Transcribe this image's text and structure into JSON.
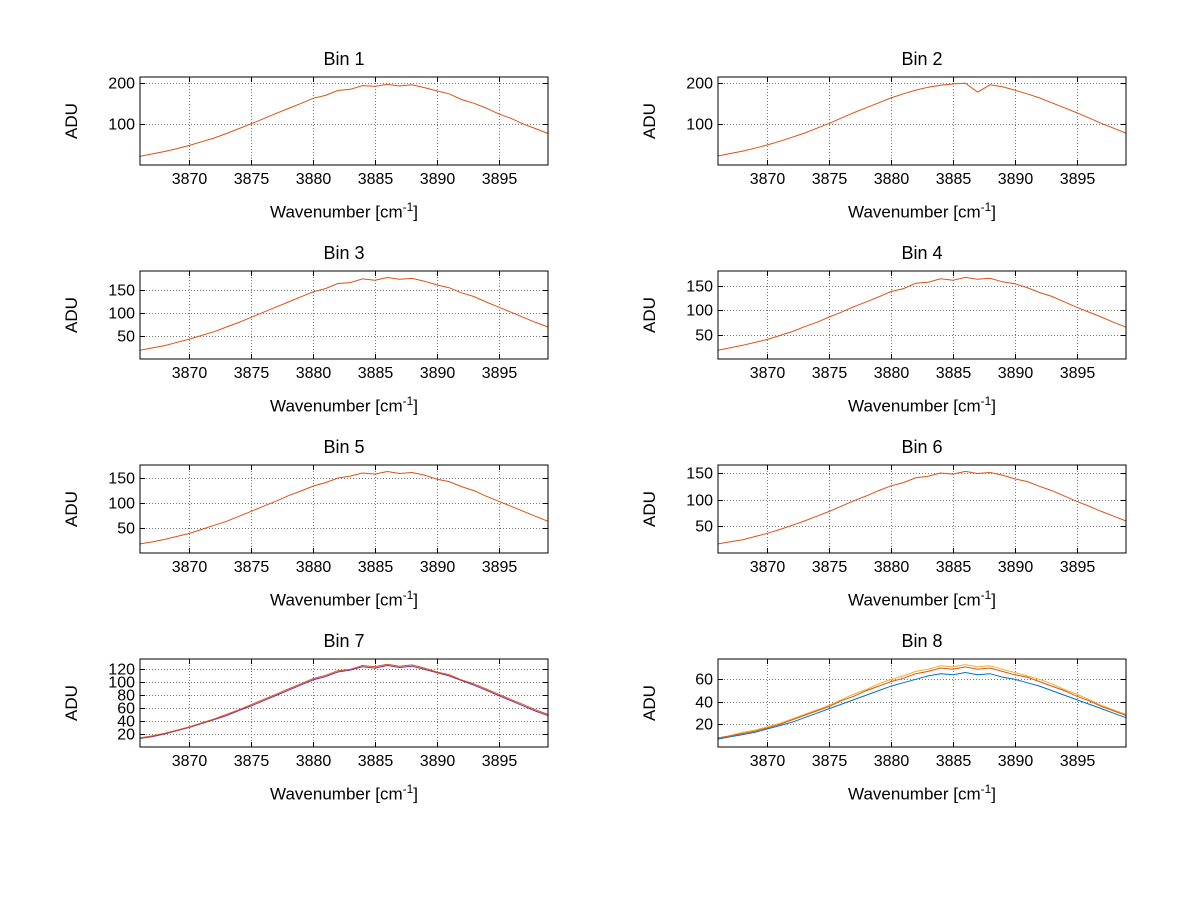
{
  "labels": {
    "ylabel": "ADU",
    "xlabel_pre": "Wavenumber [cm",
    "xlabel_sup": "-1",
    "xlabel_post": "]"
  },
  "style": {
    "background": "#ffffff",
    "axis_color": "#000000",
    "grid_color": "#767676",
    "series_colors": {
      "orange": "#D95319",
      "blue": "#0072BD",
      "yellow": "#EDB120",
      "purple": "#7E2F8E"
    }
  },
  "chart_data": [
    {
      "type": "line",
      "title": "Bin 1",
      "xlabel": "Wavenumber [cm^-1]",
      "ylabel": "ADU",
      "xlim": [
        3866,
        3899
      ],
      "ylim": [
        0,
        215
      ],
      "xticks": [
        3870,
        3875,
        3880,
        3885,
        3890,
        3895
      ],
      "yticks": [
        100,
        200
      ],
      "grid": true,
      "x_start": 3866,
      "x_step": 1,
      "series": [
        {
          "name": "orange",
          "color": "#D95319",
          "values": [
            21,
            27,
            33,
            40,
            48,
            57,
            66,
            77,
            89,
            101,
            113,
            126,
            138,
            150,
            163,
            170,
            182,
            185,
            194,
            192,
            197,
            193,
            196,
            189,
            181,
            174,
            160,
            151,
            139,
            125,
            114,
            100,
            89,
            77
          ]
        }
      ]
    },
    {
      "type": "line",
      "title": "Bin 2",
      "xlabel": "Wavenumber [cm^-1]",
      "ylabel": "ADU",
      "xlim": [
        3866,
        3899
      ],
      "ylim": [
        0,
        215
      ],
      "xticks": [
        3870,
        3875,
        3880,
        3885,
        3890,
        3895
      ],
      "yticks": [
        100,
        200
      ],
      "grid": true,
      "x_start": 3866,
      "x_step": 1,
      "series": [
        {
          "name": "orange",
          "color": "#D95319",
          "values": [
            22,
            28,
            34,
            41,
            49,
            58,
            68,
            78,
            90,
            102,
            115,
            128,
            140,
            152,
            164,
            174,
            183,
            190,
            195,
            198,
            200,
            178,
            196,
            191,
            183,
            174,
            164,
            152,
            140,
            128,
            115,
            102,
            90,
            78
          ]
        }
      ]
    },
    {
      "type": "line",
      "title": "Bin 3",
      "xlabel": "Wavenumber [cm^-1]",
      "ylabel": "ADU",
      "xlim": [
        3866,
        3899
      ],
      "ylim": [
        0,
        190
      ],
      "xticks": [
        3870,
        3875,
        3880,
        3885,
        3890,
        3895
      ],
      "yticks": [
        50,
        100,
        150
      ],
      "grid": true,
      "x_start": 3866,
      "x_step": 1,
      "series": [
        {
          "name": "orange",
          "color": "#D95319",
          "values": [
            19,
            24,
            29,
            36,
            43,
            51,
            59,
            69,
            79,
            90,
            101,
            112,
            123,
            134,
            145,
            152,
            163,
            165,
            173,
            170,
            176,
            172,
            174,
            168,
            160,
            154,
            143,
            135,
            123,
            112,
            101,
            90,
            79,
            69
          ]
        }
      ]
    },
    {
      "type": "line",
      "title": "Bin 4",
      "xlabel": "Wavenumber [cm^-1]",
      "ylabel": "ADU",
      "xlim": [
        3866,
        3899
      ],
      "ylim": [
        0,
        180
      ],
      "xticks": [
        3870,
        3875,
        3880,
        3885,
        3890,
        3895
      ],
      "yticks": [
        50,
        100,
        150
      ],
      "grid": true,
      "x_start": 3866,
      "x_step": 1,
      "series": [
        {
          "name": "orange",
          "color": "#D95319",
          "values": [
            18,
            23,
            28,
            34,
            40,
            48,
            56,
            66,
            75,
            86,
            96,
            107,
            117,
            127,
            138,
            144,
            155,
            157,
            164,
            161,
            167,
            163,
            165,
            158,
            154,
            146,
            136,
            128,
            117,
            106,
            96,
            86,
            75,
            65
          ]
        }
      ]
    },
    {
      "type": "line",
      "title": "Bin 5",
      "xlabel": "Wavenumber [cm^-1]",
      "ylabel": "ADU",
      "xlim": [
        3866,
        3899
      ],
      "ylim": [
        0,
        175
      ],
      "xticks": [
        3870,
        3875,
        3880,
        3885,
        3890,
        3895
      ],
      "yticks": [
        50,
        100,
        150
      ],
      "grid": true,
      "x_start": 3866,
      "x_step": 1,
      "series": [
        {
          "name": "orange",
          "color": "#D95319",
          "values": [
            18,
            22,
            27,
            33,
            39,
            47,
            55,
            63,
            73,
            83,
            93,
            103,
            114,
            123,
            133,
            140,
            149,
            153,
            159,
            157,
            162,
            158,
            160,
            155,
            147,
            142,
            132,
            124,
            113,
            103,
            93,
            83,
            73,
            63
          ]
        }
      ]
    },
    {
      "type": "line",
      "title": "Bin 6",
      "xlabel": "Wavenumber [cm^-1]",
      "ylabel": "ADU",
      "xlim": [
        3866,
        3899
      ],
      "ylim": [
        0,
        165
      ],
      "xticks": [
        3870,
        3875,
        3880,
        3885,
        3890,
        3895
      ],
      "yticks": [
        50,
        100,
        150
      ],
      "grid": true,
      "x_start": 3866,
      "x_step": 1,
      "series": [
        {
          "name": "orange",
          "color": "#D95319",
          "values": [
            17,
            21,
            25,
            31,
            37,
            44,
            52,
            60,
            69,
            78,
            88,
            98,
            107,
            117,
            126,
            132,
            141,
            144,
            150,
            148,
            153,
            149,
            151,
            146,
            139,
            134,
            125,
            117,
            107,
            97,
            88,
            78,
            69,
            60
          ]
        }
      ]
    },
    {
      "type": "line",
      "title": "Bin 7",
      "xlabel": "Wavenumber [cm^-1]",
      "ylabel": "ADU",
      "xlim": [
        3866,
        3899
      ],
      "ylim": [
        0,
        135
      ],
      "xticks": [
        3870,
        3875,
        3880,
        3885,
        3890,
        3895
      ],
      "yticks": [
        20,
        40,
        60,
        80,
        100,
        120
      ],
      "grid": true,
      "x_start": 3866,
      "x_step": 1,
      "series": [
        {
          "name": "purple",
          "color": "#7E2F8E",
          "values": [
            13,
            16,
            20,
            25,
            30,
            36,
            42,
            48,
            56,
            63,
            71,
            79,
            87,
            95,
            103,
            108,
            115,
            118,
            123,
            121,
            125,
            122,
            124,
            119,
            114,
            109,
            102,
            95,
            87,
            79,
            71,
            63,
            55,
            48
          ]
        },
        {
          "name": "orange",
          "color": "#D95319",
          "values": [
            14,
            17,
            21,
            26,
            31,
            37,
            43,
            50,
            57,
            65,
            73,
            81,
            89,
            97,
            105,
            110,
            117,
            119,
            125,
            123,
            127,
            124,
            126,
            121,
            115,
            111,
            103,
            97,
            89,
            81,
            73,
            65,
            57,
            50
          ]
        }
      ]
    },
    {
      "type": "line",
      "title": "Bin 8",
      "xlabel": "Wavenumber [cm^-1]",
      "ylabel": "ADU",
      "xlim": [
        3866,
        3899
      ],
      "ylim": [
        0,
        78
      ],
      "xticks": [
        3870,
        3875,
        3880,
        3885,
        3890,
        3895
      ],
      "yticks": [
        20,
        40,
        60
      ],
      "grid": true,
      "x_start": 3866,
      "x_step": 1,
      "series": [
        {
          "name": "blue",
          "color": "#0072BD",
          "values": [
            7,
            9,
            11,
            13,
            16,
            19,
            22,
            26,
            30,
            34,
            38,
            42,
            46,
            50,
            54,
            57,
            60,
            63,
            65,
            64,
            66,
            64,
            65,
            62,
            60,
            57,
            54,
            50,
            46,
            42,
            38,
            34,
            30,
            26
          ]
        },
        {
          "name": "yellow",
          "color": "#EDB120",
          "values": [
            8,
            10,
            13,
            15,
            18,
            21,
            25,
            29,
            33,
            37,
            42,
            47,
            51,
            56,
            60,
            63,
            67,
            69,
            72,
            71,
            73,
            71,
            72,
            69,
            66,
            63,
            60,
            56,
            51,
            47,
            42,
            37,
            33,
            29
          ]
        },
        {
          "name": "orange",
          "color": "#D95319",
          "values": [
            8,
            10,
            12,
            14,
            17,
            20,
            24,
            28,
            32,
            36,
            41,
            45,
            50,
            54,
            58,
            61,
            65,
            67,
            70,
            69,
            71,
            69,
            70,
            67,
            64,
            62,
            58,
            54,
            50,
            45,
            41,
            36,
            32,
            28
          ]
        }
      ]
    }
  ]
}
